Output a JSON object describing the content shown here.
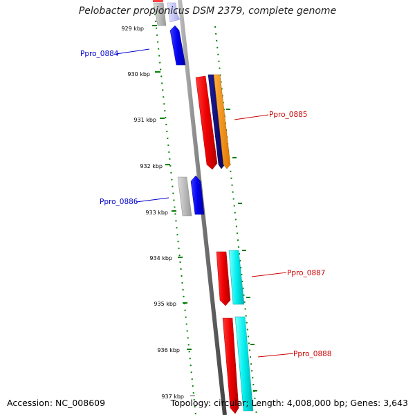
{
  "title": "Pelobacter propionicus DSM 2379, complete genome",
  "footer": {
    "accession": "Accession: NC_008609",
    "topology": "Topology: circular; Length: 4,008,000 bp; Genes: 3,643"
  },
  "ruler": {
    "ticks": [
      "929 kbp",
      "930 kbp",
      "931 kbp",
      "932 kbp",
      "933 kbp",
      "934 kbp",
      "935 kbp",
      "936 kbp",
      "937 kbp"
    ],
    "color": "#008000"
  },
  "gene_labels": [
    {
      "text": "Ppro_0884",
      "color": "#0000cc"
    },
    {
      "text": "Ppro_0885",
      "color": "#cc0000"
    },
    {
      "text": "Ppro_0886",
      "color": "#0000cc"
    },
    {
      "text": "Ppro_0887",
      "color": "#cc0000"
    },
    {
      "text": "Ppro_0888",
      "color": "#cc0000"
    }
  ],
  "colors": {
    "backbone": "#777777",
    "forward": "#ff0000",
    "reverse": "#0000ee",
    "navy": "#000080",
    "orange": "#ff9900",
    "cyan": "#00eeee",
    "grey": "#bbbbbb",
    "lavender": "#ccccff"
  }
}
